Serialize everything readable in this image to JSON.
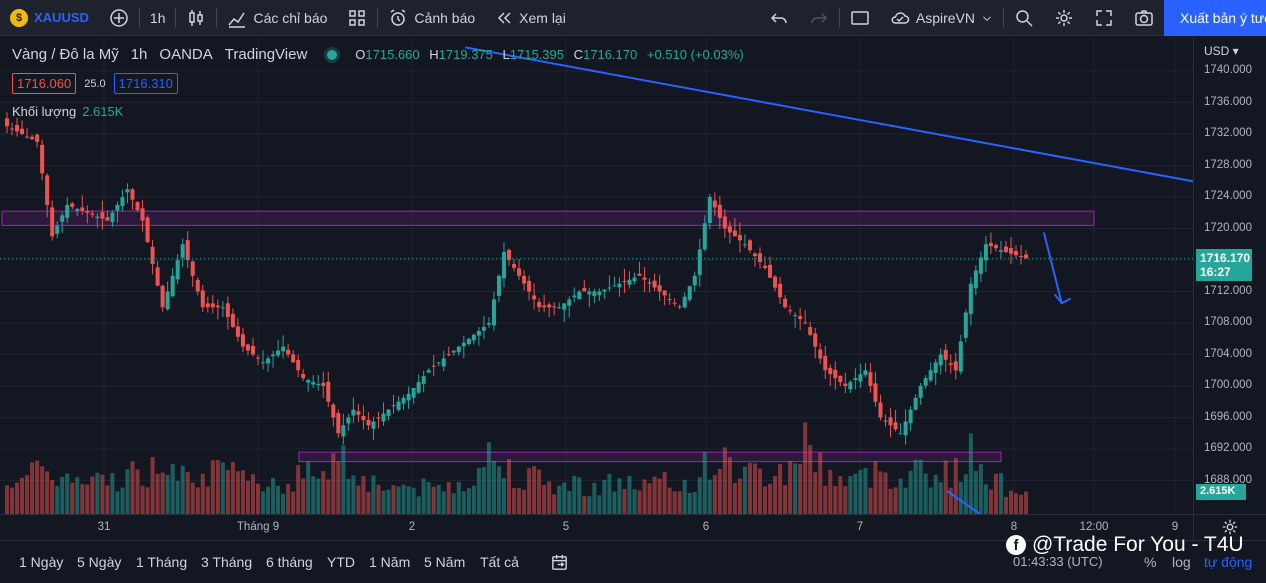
{
  "toolbar": {
    "symbol": "XAUUSD",
    "interval": "1h",
    "indicators_label": "Các chỉ báo",
    "alert_label": "Cảnh báo",
    "replay_label": "Xem lại",
    "layout_name": "AspireVN",
    "publish_label": "Xuất bản ý tưởng"
  },
  "legend": {
    "title": "Vàng / Đô la Mỹ",
    "interval": "1h",
    "broker": "OANDA",
    "source": "TradingView",
    "o_label": "O",
    "o_value": "1715.660",
    "h_label": "H",
    "h_value": "1719.375",
    "l_label": "L",
    "l_value": "1715.395",
    "c_label": "C",
    "c_value": "1716.170",
    "change": "+0.510 (+0.03%)",
    "sell_price": "1716.060",
    "spread": "25.0",
    "buy_price": "1716.310",
    "volume_label": "Khối lượng",
    "volume_value": "2.615K"
  },
  "price_axis": {
    "currency": "USD",
    "ticks": [
      "1740.000",
      "1736.000",
      "1732.000",
      "1728.000",
      "1724.000",
      "1720.000",
      "1716.000",
      "1712.000",
      "1708.000",
      "1704.000",
      "1700.000",
      "1696.000",
      "1692.000",
      "1688.000"
    ],
    "last_price": "1716.170",
    "countdown": "16:27",
    "volume_tag": "2.615K"
  },
  "time_axis": {
    "labels": [
      "31",
      "Tháng 9",
      "2",
      "5",
      "6",
      "7",
      "8",
      "12:00",
      "9"
    ]
  },
  "ranges": [
    "1 Ngày",
    "5 Ngày",
    "1 Tháng",
    "3 Tháng",
    "6 tháng",
    "YTD",
    "1 Năm",
    "5 Năm",
    "Tất cả"
  ],
  "footer": {
    "clock": "01:43:33 (UTC)",
    "percent": "%",
    "log": "log",
    "auto": "tự động",
    "watermark": "@Trade For You - T4U"
  },
  "colors": {
    "up": "#26a69a",
    "down": "#ef5350",
    "zone": "#9c27b0",
    "trendline": "#2962ff"
  },
  "chart_data": {
    "type": "candlestick",
    "symbol": "XAUUSD",
    "interval": "1h",
    "ylim": [
      1686,
      1742
    ],
    "volume_scale_max": 2.6,
    "zones": [
      {
        "low": 1720.4,
        "high": 1722.2,
        "border": "#9c27b0"
      },
      {
        "low": 1690.4,
        "high": 1691.6,
        "border": "#9c27b0"
      }
    ],
    "trendline": [
      [
        0.39,
        1743
      ],
      [
        1.0,
        1726
      ]
    ],
    "arrow": [
      [
        0.875,
        1719.5
      ],
      [
        0.89,
        1710.5
      ]
    ],
    "anchor_points": [
      [
        0,
        1733,
        1.5
      ],
      [
        3,
        1732,
        1.3
      ],
      [
        6,
        1731,
        1.4
      ],
      [
        9,
        1719,
        1.7
      ],
      [
        12,
        1723,
        1.2
      ],
      [
        16,
        1722,
        1.1
      ],
      [
        20,
        1721,
        1.2
      ],
      [
        24,
        1725,
        1.5
      ],
      [
        27,
        1721,
        1.3
      ],
      [
        31,
        1710,
        1.9
      ],
      [
        35,
        1718,
        2.0
      ],
      [
        39,
        1710,
        1.4
      ],
      [
        43,
        1710,
        1.5
      ],
      [
        47,
        1705,
        1.2
      ],
      [
        51,
        1703,
        1.3
      ],
      [
        55,
        1705,
        1.1
      ],
      [
        59,
        1701,
        1.4
      ],
      [
        63,
        1700,
        1.7
      ],
      [
        66,
        1694,
        2.2
      ],
      [
        69,
        1697,
        1.6
      ],
      [
        72,
        1695,
        1.2
      ],
      [
        76,
        1697,
        1.0
      ],
      [
        80,
        1699,
        1.0
      ],
      [
        84,
        1702,
        0.9
      ],
      [
        88,
        1704,
        1.0
      ],
      [
        92,
        1706,
        1.3
      ],
      [
        96,
        1708,
        2.1
      ],
      [
        99,
        1717,
        1.7
      ],
      [
        102,
        1714,
        1.5
      ],
      [
        106,
        1710,
        1.2
      ],
      [
        110,
        1710,
        1.0
      ],
      [
        114,
        1712,
        1.1
      ],
      [
        118,
        1712,
        1.0
      ],
      [
        122,
        1713,
        1.2
      ],
      [
        126,
        1714,
        1.0
      ],
      [
        130,
        1712,
        1.1
      ],
      [
        134,
        1710,
        1.0
      ],
      [
        137,
        1714,
        1.2
      ],
      [
        140,
        1724,
        1.9
      ],
      [
        143,
        1720,
        1.8
      ],
      [
        147,
        1718,
        1.5
      ],
      [
        151,
        1715,
        1.4
      ],
      [
        155,
        1710,
        1.5
      ],
      [
        159,
        1708,
        2.6
      ],
      [
        163,
        1702,
        1.5
      ],
      [
        167,
        1700,
        1.2
      ],
      [
        171,
        1702,
        1.3
      ],
      [
        174,
        1696,
        1.6
      ],
      [
        178,
        1694,
        1.3
      ],
      [
        182,
        1700,
        1.7
      ],
      [
        186,
        1704,
        1.4
      ],
      [
        189,
        1702,
        1.5
      ],
      [
        192,
        1713,
        2.1
      ],
      [
        195,
        1718,
        1.6
      ],
      [
        199,
        1717,
        0.9
      ],
      [
        203,
        1716.2,
        1.0
      ]
    ]
  }
}
